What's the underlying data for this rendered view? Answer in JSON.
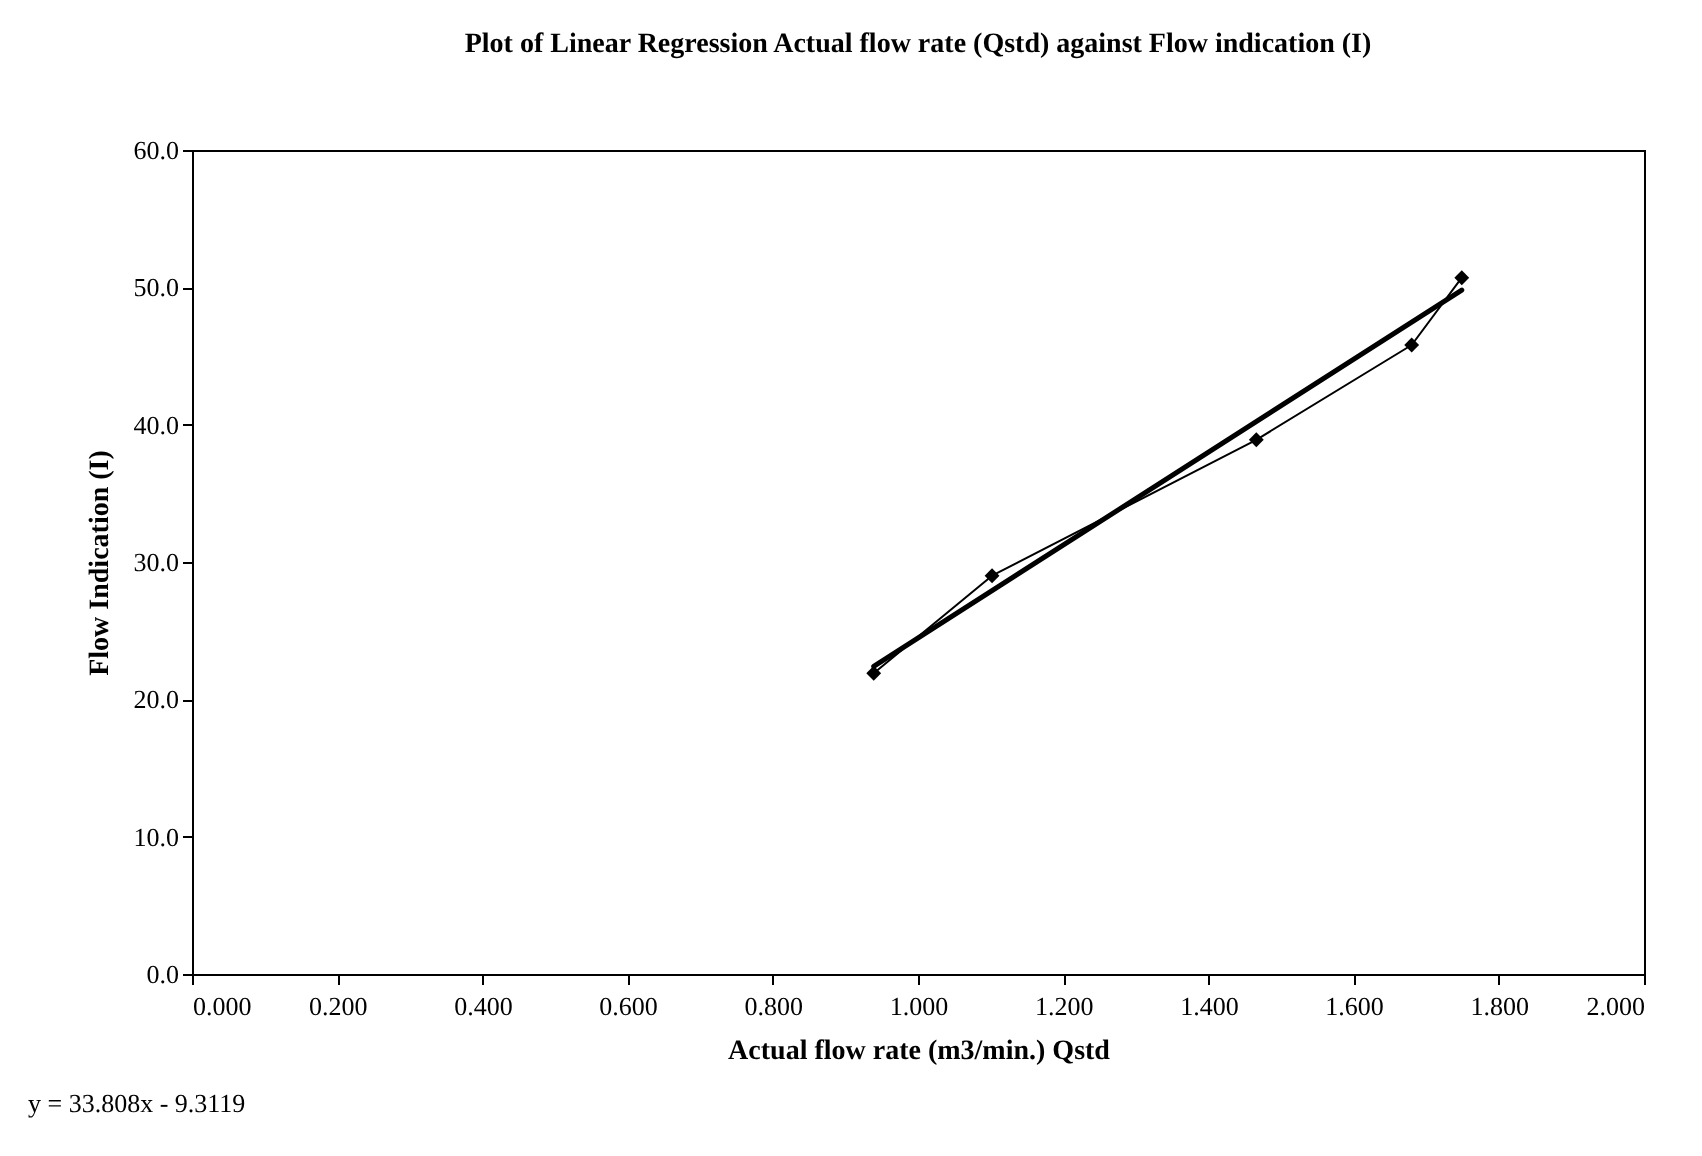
{
  "chart_data": {
    "type": "line",
    "title": "Plot of Linear Regression Actual flow rate (Qstd) against Flow indication (I)",
    "xlabel": "Actual flow rate (m3/min.) Qstd",
    "ylabel": "Flow Indication (I)",
    "x": [
      0.939,
      1.102,
      1.466,
      1.68,
      1.749
    ],
    "series": [
      {
        "color": "#000000",
        "values": [
          21.9,
          29.0,
          38.9,
          45.8,
          50.7
        ]
      },
      {
        "type": "line",
        "color": "#000000",
        "marker": "none",
        "x": [
          0.939,
          1.749
        ],
        "values": [
          22.4,
          49.8
        ]
      }
    ],
    "xlim": [
      0,
      2
    ],
    "xticks": [
      {
        "value": 0,
        "label": "0.000"
      },
      {
        "value": 0.2,
        "label": "0.200"
      },
      {
        "value": 0.4,
        "label": "0.400"
      },
      {
        "value": 0.6,
        "label": "0.600"
      },
      {
        "value": 0.8,
        "label": "0.800"
      },
      {
        "value": 1,
        "label": "1.000"
      },
      {
        "value": 1.2,
        "label": "1.200"
      },
      {
        "value": 1.4,
        "label": "1.400"
      },
      {
        "value": 1.6,
        "label": "1.600"
      },
      {
        "value": 1.8,
        "label": "1.800"
      },
      {
        "value": 2,
        "label": "2.000"
      }
    ],
    "ylim": [
      0,
      60
    ],
    "yticks": [
      {
        "value": 0,
        "label": "0.0"
      },
      {
        "value": 10,
        "label": "10.0"
      },
      {
        "value": 20,
        "label": "20.0"
      },
      {
        "value": 30,
        "label": "30.0"
      },
      {
        "value": 40,
        "label": "40.0"
      },
      {
        "value": 50,
        "label": "50.0"
      },
      {
        "value": 60,
        "label": "60.0"
      }
    ],
    "grid": false,
    "marker": "diamond",
    "annotations": [
      "y = 33.808x - 9.3119"
    ]
  }
}
